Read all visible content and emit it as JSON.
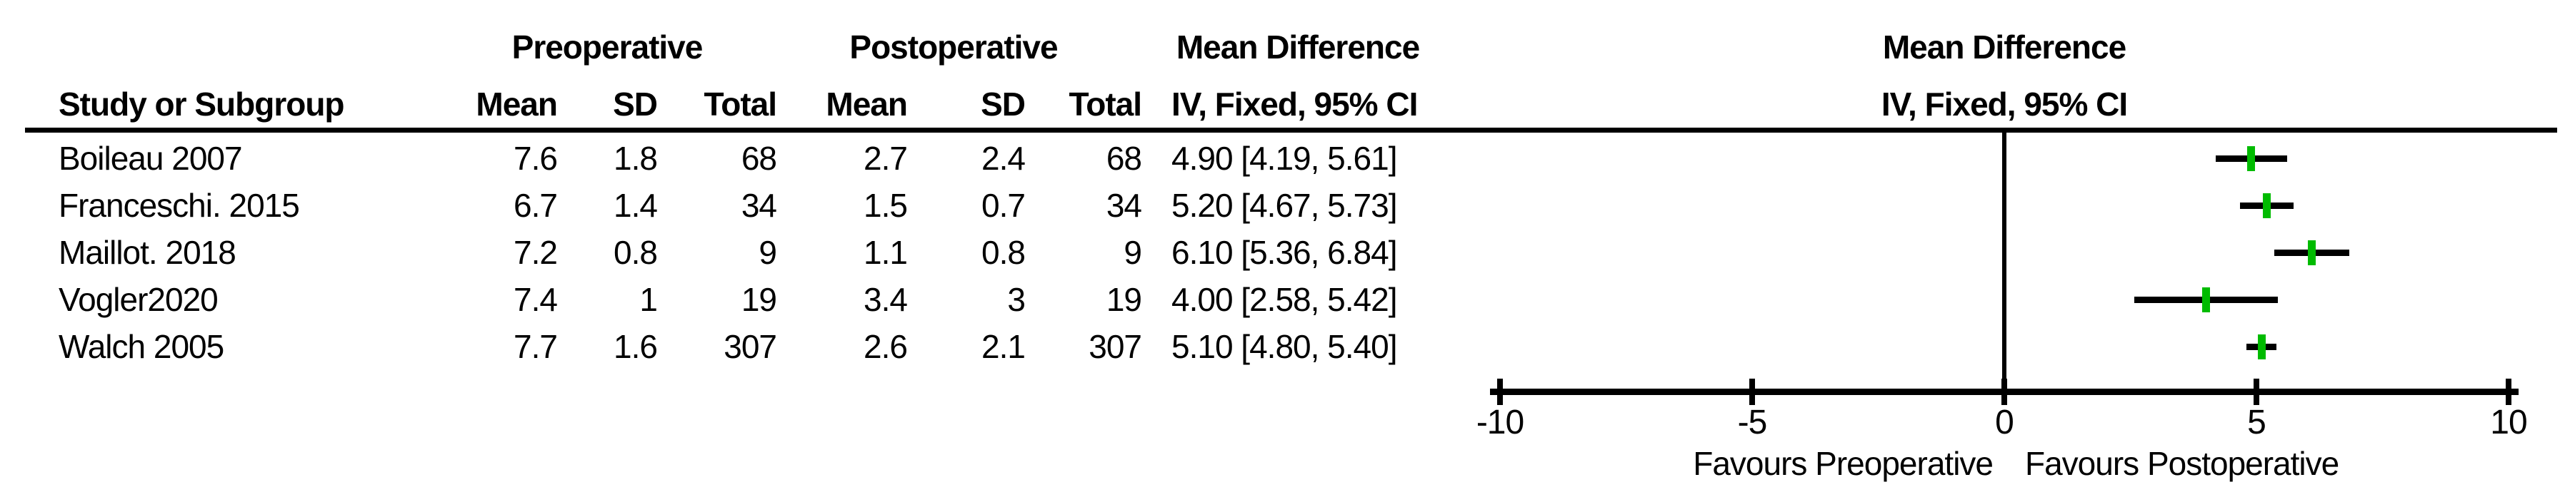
{
  "table": {
    "study_header": "Study or Subgroup",
    "pre_group": "Preoperative",
    "post_group": "Postoperative",
    "md_group": "Mean Difference",
    "mean_header": "Mean",
    "sd_header": "SD",
    "total_header": "Total",
    "method_header": "IV, Fixed, 95% CI"
  },
  "plot": {
    "header_line1": "Mean Difference",
    "header_line2": "IV, Fixed, 95% CI"
  },
  "chart_data": {
    "type": "forest",
    "effect_measure": "Mean Difference",
    "model": "IV, Fixed, 95% CI",
    "axis": {
      "min": -10,
      "max": 10,
      "ticks": [
        -10,
        -5,
        0,
        5,
        10
      ],
      "tick_labels": [
        "-10",
        "-5",
        "0",
        "5",
        "10"
      ]
    },
    "footer_left": "Favours Preoperative",
    "footer_right": "Favours Postoperative",
    "marker_color": "#00BB00",
    "line_color": "#000000",
    "studies": [
      {
        "name": "Boileau 2007",
        "pre_mean": "7.6",
        "pre_sd": "1.8",
        "pre_total": "68",
        "post_mean": "2.7",
        "post_sd": "2.4",
        "post_total": "68",
        "md": 4.9,
        "ci_low": 4.19,
        "ci_high": 5.61,
        "ci_text": "4.90 [4.19, 5.61]"
      },
      {
        "name": "Franceschi. 2015",
        "pre_mean": "6.7",
        "pre_sd": "1.4",
        "pre_total": "34",
        "post_mean": "1.5",
        "post_sd": "0.7",
        "post_total": "34",
        "md": 5.2,
        "ci_low": 4.67,
        "ci_high": 5.73,
        "ci_text": "5.20 [4.67, 5.73]"
      },
      {
        "name": "Maillot. 2018",
        "pre_mean": "7.2",
        "pre_sd": "0.8",
        "pre_total": "9",
        "post_mean": "1.1",
        "post_sd": "0.8",
        "post_total": "9",
        "md": 6.1,
        "ci_low": 5.36,
        "ci_high": 6.84,
        "ci_text": "6.10 [5.36, 6.84]"
      },
      {
        "name": "Vogler2020",
        "pre_mean": "7.4",
        "pre_sd": "1",
        "pre_total": "19",
        "post_mean": "3.4",
        "post_sd": "3",
        "post_total": "19",
        "md": 4.0,
        "ci_low": 2.58,
        "ci_high": 5.42,
        "ci_text": "4.00 [2.58, 5.42]"
      },
      {
        "name": "Walch 2005",
        "pre_mean": "7.7",
        "pre_sd": "1.6",
        "pre_total": "307",
        "post_mean": "2.6",
        "post_sd": "2.1",
        "post_total": "307",
        "md": 5.1,
        "ci_low": 4.8,
        "ci_high": 5.4,
        "ci_text": "5.10 [4.80, 5.40]"
      }
    ]
  }
}
